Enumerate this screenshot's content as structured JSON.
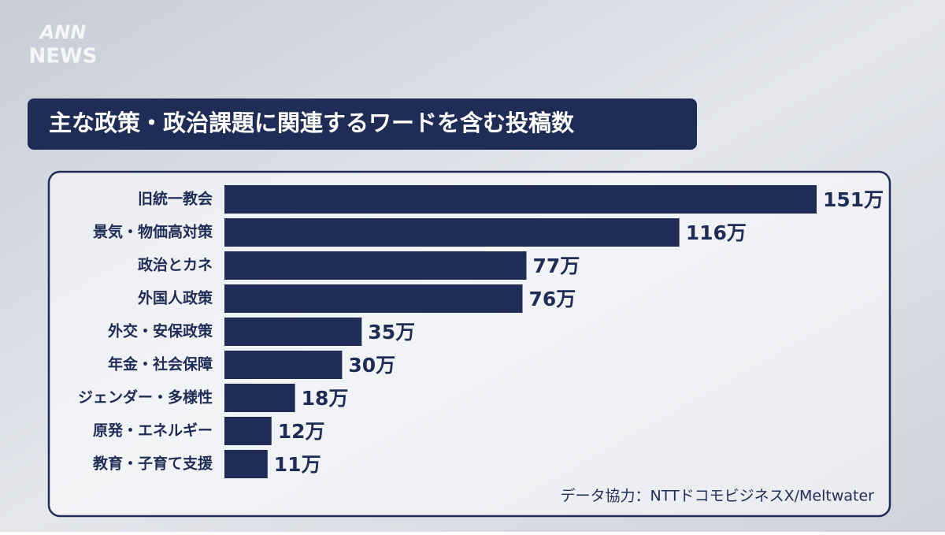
{
  "logo": {
    "top": "ANN",
    "bottom": "NEWS"
  },
  "chart_data": {
    "type": "barh",
    "title": "主な政策・政治課題に関連するワードを含む投稿数",
    "categories": [
      "旧統一教会",
      "景気・物価高対策",
      "政治とカネ",
      "外国人政策",
      "外交・安保政策",
      "年金・社会保障",
      "ジェンダー・多様性",
      "原発・エネルギー",
      "教育・子育て支援"
    ],
    "values": [
      151,
      116,
      77,
      76,
      35,
      30,
      18,
      12,
      11
    ],
    "value_labels": [
      "151万",
      "116万",
      "77万",
      "76万",
      "35万",
      "30万",
      "18万",
      "12万",
      "11万"
    ],
    "color": "#1f2c55",
    "source": "データ協力：NTTドコモビジネスX/Meltwater"
  }
}
